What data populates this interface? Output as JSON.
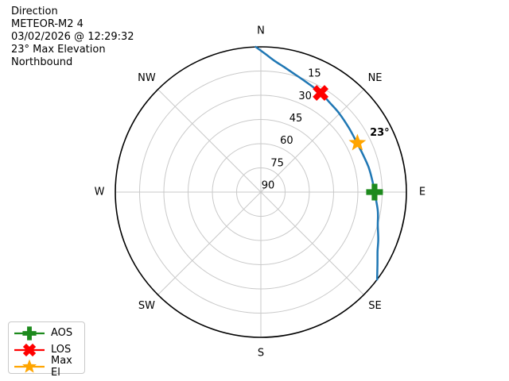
{
  "header": {
    "lines": [
      "Direction",
      "METEOR-M2 4",
      "03/02/2026 @ 12:29:32",
      "23° Max Elevation",
      "Northbound"
    ]
  },
  "chart_data": {
    "type": "polar_sky_track",
    "title": "Direction",
    "satellite": "METEOR-M2 4",
    "timestamp": "03/02/2026 @ 12:29:32",
    "max_elevation_deg": 23,
    "pass_direction": "Northbound",
    "compass_labels": [
      "N",
      "NE",
      "E",
      "SE",
      "S",
      "SW",
      "W",
      "NW"
    ],
    "elevation_ring_labels": [
      "15",
      "30",
      "45",
      "60",
      "75",
      "90"
    ],
    "elevation_rings_deg": [
      15,
      30,
      45,
      60,
      75
    ],
    "ring_label_azimuth_deg": 22.5,
    "elevation_range": [
      0,
      90
    ],
    "grid": true,
    "track": {
      "name": "satellite-pass-track",
      "color": "#1f77b4",
      "points_az_el": [
        [
          -2,
          0
        ],
        [
          2,
          4.5
        ],
        [
          6,
          8.3
        ],
        [
          11,
          11.5
        ],
        [
          16,
          14
        ],
        [
          23,
          16.5
        ],
        [
          31,
          18.3
        ],
        [
          38,
          20.2
        ],
        [
          45,
          21.3
        ],
        [
          54,
          22.6
        ],
        [
          63,
          23.2
        ],
        [
          70,
          22.7
        ],
        [
          77,
          21.6
        ],
        [
          84,
          20.7
        ],
        [
          90,
          19.7
        ],
        [
          99,
          16.8
        ],
        [
          106,
          14.8
        ],
        [
          112,
          11.7
        ],
        [
          117,
          9
        ],
        [
          122,
          5
        ],
        [
          127,
          0
        ]
      ]
    },
    "markers": [
      {
        "id": "aos",
        "label": "AOS",
        "symbol": "plus",
        "color": "#1d8a1d",
        "az": 90,
        "el": 19.7
      },
      {
        "id": "los",
        "label": "LOS",
        "symbol": "x",
        "color": "#ff0000",
        "az": 31,
        "el": 18.3
      },
      {
        "id": "max-el",
        "label": "Max El",
        "symbol": "star",
        "color": "#ffa500",
        "az": 63,
        "el": 23
      }
    ],
    "annotation": {
      "text": "23°",
      "attached_to": "max-el"
    },
    "legend_position": "lower-left"
  },
  "legend": {
    "items": [
      {
        "label": "AOS"
      },
      {
        "label": "LOS"
      },
      {
        "label": "Max El"
      }
    ]
  },
  "colors": {
    "track": "#1f77b4",
    "aos": "#1d8a1d",
    "los": "#ff0000",
    "max_el": "#ffa500",
    "grid": "#c9c9c9",
    "outline": "#000000"
  }
}
